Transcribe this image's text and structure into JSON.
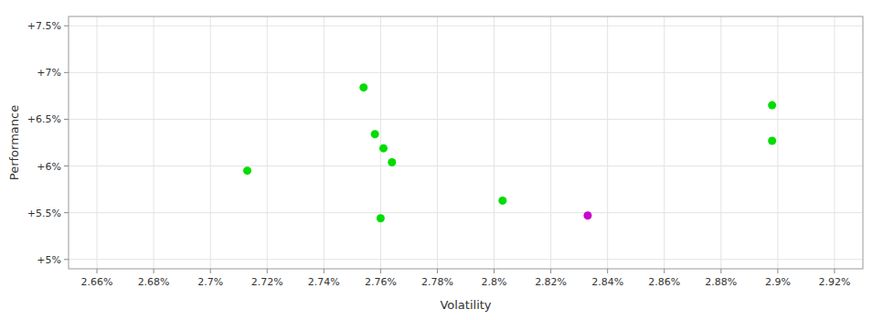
{
  "chart_data": {
    "type": "scatter",
    "x": [
      2.713,
      2.754,
      2.758,
      2.761,
      2.764,
      2.76,
      2.803,
      2.833,
      2.898,
      2.898
    ],
    "values": [
      5.95,
      6.84,
      6.34,
      6.19,
      6.04,
      5.44,
      5.63,
      5.47,
      6.65,
      6.27
    ],
    "colors": [
      "#00dd00",
      "#00dd00",
      "#00dd00",
      "#00dd00",
      "#00dd00",
      "#00dd00",
      "#00dd00",
      "#cc00cc",
      "#00dd00",
      "#00dd00"
    ],
    "xlabel": "Volatility",
    "ylabel": "Performance",
    "xlim": [
      2.65,
      2.93
    ],
    "ylim": [
      4.9,
      7.6
    ],
    "xticks": [
      {
        "value": 2.66,
        "label": "2.66%"
      },
      {
        "value": 2.68,
        "label": "2.68%"
      },
      {
        "value": 2.7,
        "label": "2.7%"
      },
      {
        "value": 2.72,
        "label": "2.72%"
      },
      {
        "value": 2.74,
        "label": "2.74%"
      },
      {
        "value": 2.76,
        "label": "2.76%"
      },
      {
        "value": 2.78,
        "label": "2.78%"
      },
      {
        "value": 2.8,
        "label": "2.8%"
      },
      {
        "value": 2.82,
        "label": "2.82%"
      },
      {
        "value": 2.84,
        "label": "2.84%"
      },
      {
        "value": 2.86,
        "label": "2.86%"
      },
      {
        "value": 2.88,
        "label": "2.88%"
      },
      {
        "value": 2.9,
        "label": "2.9%"
      },
      {
        "value": 2.92,
        "label": "2.92%"
      }
    ],
    "yticks": [
      {
        "value": 5.0,
        "label": "+5%"
      },
      {
        "value": 5.5,
        "label": "+5.5%"
      },
      {
        "value": 6.0,
        "label": "+6%"
      },
      {
        "value": 6.5,
        "label": "+6.5%"
      },
      {
        "value": 7.0,
        "label": "+7%"
      },
      {
        "value": 7.5,
        "label": "+7.5%"
      }
    ],
    "grid": true
  }
}
